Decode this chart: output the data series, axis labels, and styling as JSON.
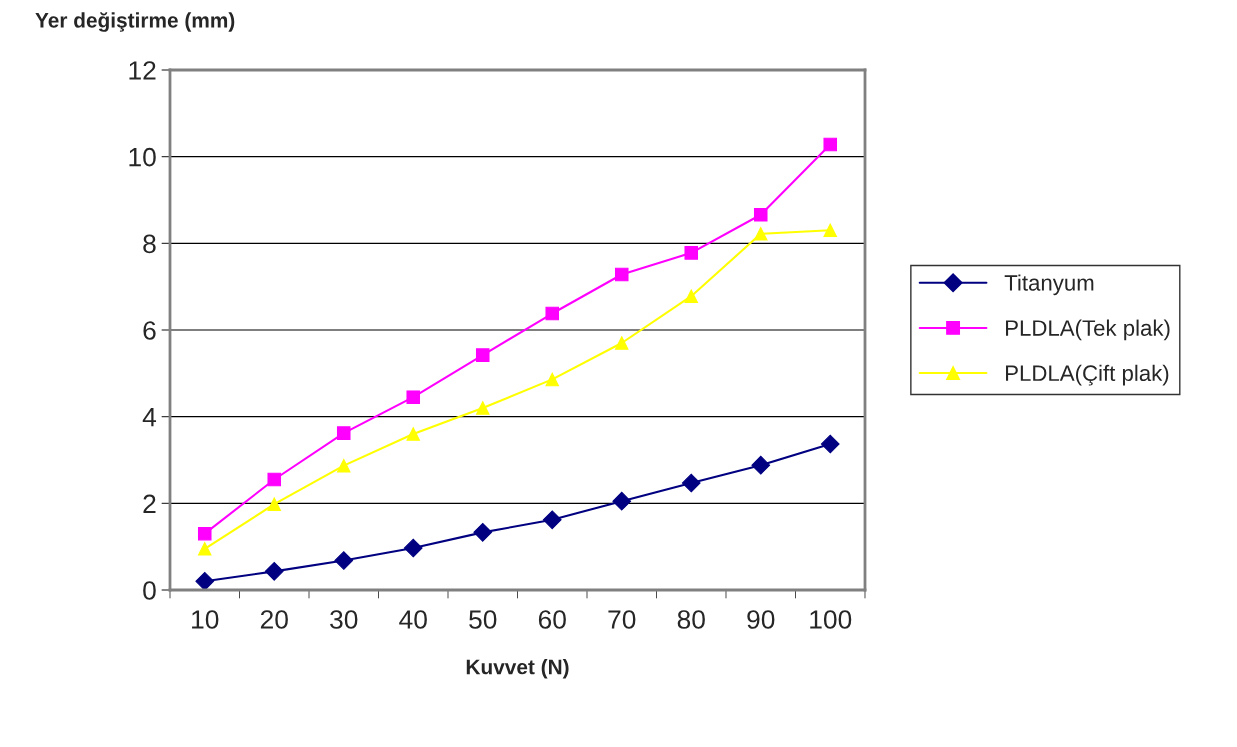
{
  "chart_data": {
    "type": "line",
    "ylabel": "Yer değiştirme (mm)",
    "xlabel": "Kuvvet (N)",
    "categories": [
      "10",
      "20",
      "30",
      "40",
      "50",
      "60",
      "70",
      "80",
      "90",
      "100"
    ],
    "series": [
      {
        "name": "Titanyum",
        "color": "#000080",
        "marker": "diamond",
        "values": [
          0.2,
          0.43,
          0.68,
          0.97,
          1.33,
          1.62,
          2.05,
          2.47,
          2.88,
          3.37
        ]
      },
      {
        "name": "PLDLA(Tek plak)",
        "color": "#ff00ff",
        "marker": "square",
        "values": [
          1.3,
          2.55,
          3.62,
          4.45,
          5.42,
          6.38,
          7.28,
          7.78,
          8.66,
          10.28
        ]
      },
      {
        "name": "PLDLA(Çift plak)",
        "color": "#ffff00",
        "marker": "triangle",
        "values": [
          0.95,
          1.98,
          2.87,
          3.6,
          4.2,
          4.86,
          5.7,
          6.78,
          8.22,
          8.3
        ]
      }
    ],
    "ylim": [
      0,
      12
    ],
    "yticks": [
      0,
      2,
      4,
      6,
      8,
      10,
      12
    ],
    "grid": "y",
    "legend": "right",
    "line_style": "solid"
  }
}
